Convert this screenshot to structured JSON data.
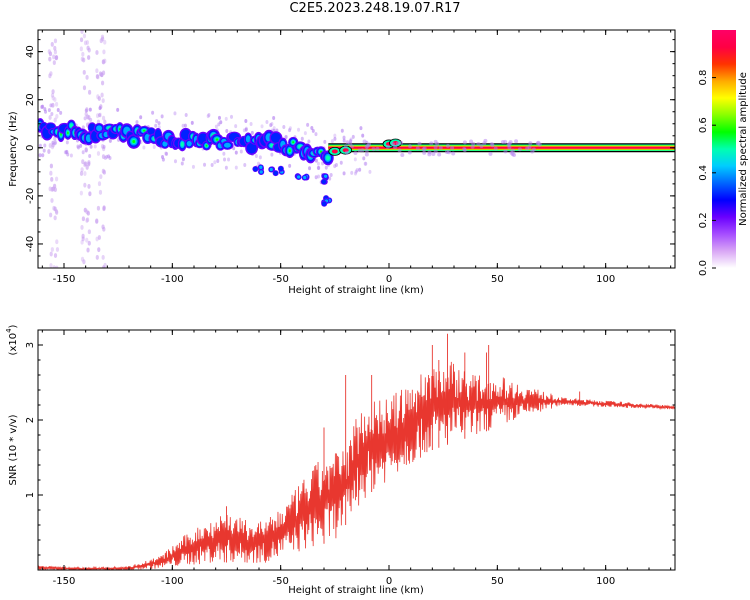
{
  "title": "C2E5.2023.248.19.07.R17",
  "chart_data": [
    {
      "type": "heatmap",
      "name": "spectrogram",
      "xlabel": "Height of straight line (km)",
      "ylabel": "Frequency (Hz)",
      "xlim": [
        -162,
        132
      ],
      "ylim": [
        -50,
        49
      ],
      "xticks": [
        -150,
        -100,
        -50,
        0,
        50,
        100
      ],
      "yticks": [
        -40,
        -20,
        0,
        20,
        40
      ],
      "colorbar": {
        "label": "Normalized spectral amplitude",
        "range": [
          0,
          1
        ],
        "ticks": [
          "0.0",
          "0.2",
          "0.4",
          "0.6",
          "0.8"
        ],
        "colors": [
          "#ffffff",
          "#d9a6f5",
          "#a64dff",
          "#6a00ff",
          "#0000ff",
          "#0066ff",
          "#00ccff",
          "#00ffb0",
          "#00ff00",
          "#88ff00",
          "#ffff00",
          "#ffaa00",
          "#ff3300",
          "#ff0044",
          "#ff0066"
        ]
      },
      "ridge": [
        {
          "x": -162,
          "y": 7
        },
        {
          "x": -150,
          "y": 7
        },
        {
          "x": -130,
          "y": 6
        },
        {
          "x": -110,
          "y": 4.5
        },
        {
          "x": -90,
          "y": 3
        },
        {
          "x": -70,
          "y": 2.5
        },
        {
          "x": -55,
          "y": 2
        },
        {
          "x": -45,
          "y": 1
        },
        {
          "x": -35,
          "y": -2
        },
        {
          "x": -28,
          "y": -6
        },
        {
          "x": -25,
          "y": 0
        },
        {
          "x": -20,
          "y": -1
        },
        {
          "x": -10,
          "y": 0
        },
        {
          "x": 0,
          "y": 1.5
        },
        {
          "x": 10,
          "y": 0.5
        },
        {
          "x": 20,
          "y": 0
        },
        {
          "x": 132,
          "y": 0
        }
      ],
      "clusters": [
        {
          "x": -60,
          "y": -9
        },
        {
          "x": -52,
          "y": -10
        },
        {
          "x": -40,
          "y": -12
        },
        {
          "x": -32,
          "y": -13
        },
        {
          "x": -30,
          "y": -22
        }
      ],
      "line_from_x": -28,
      "vertical_bands_x": [
        -155,
        -140,
        -133
      ]
    },
    {
      "type": "line",
      "name": "snr",
      "xlabel": "Height of straight line (km)",
      "ylabel": "SNR (10 * v/v)",
      "yscale_label": "(x10",
      "yscale_exp": "4",
      "yscale_close": ")",
      "xlim": [
        -162,
        132
      ],
      "ylim": [
        0,
        3.2
      ],
      "xticks": [
        -150,
        -100,
        -50,
        0,
        50,
        100
      ],
      "yticks": [
        1,
        2,
        3
      ],
      "color": "#e8372f",
      "envelope": [
        {
          "x": -162,
          "low": 0.0,
          "high": 0.06
        },
        {
          "x": -140,
          "low": 0.0,
          "high": 0.03
        },
        {
          "x": -120,
          "low": 0.0,
          "high": 0.05
        },
        {
          "x": -105,
          "low": 0.02,
          "high": 0.2
        },
        {
          "x": -95,
          "low": 0.05,
          "high": 0.45
        },
        {
          "x": -85,
          "low": 0.08,
          "high": 0.65
        },
        {
          "x": -75,
          "low": 0.1,
          "high": 0.8
        },
        {
          "x": -65,
          "low": 0.08,
          "high": 0.65
        },
        {
          "x": -55,
          "low": 0.1,
          "high": 0.7
        },
        {
          "x": -45,
          "low": 0.2,
          "high": 1.0
        },
        {
          "x": -35,
          "low": 0.3,
          "high": 1.4
        },
        {
          "x": -25,
          "low": 0.4,
          "high": 1.6
        },
        {
          "x": -20,
          "low": 0.6,
          "high": 1.6
        },
        {
          "x": -15,
          "low": 0.8,
          "high": 2.1
        },
        {
          "x": -10,
          "low": 1.0,
          "high": 2.3
        },
        {
          "x": 0,
          "low": 1.2,
          "high": 2.3
        },
        {
          "x": 10,
          "low": 1.4,
          "high": 2.5
        },
        {
          "x": 20,
          "low": 1.6,
          "high": 2.8
        },
        {
          "x": 30,
          "low": 1.7,
          "high": 2.8
        },
        {
          "x": 40,
          "low": 1.8,
          "high": 2.6
        },
        {
          "x": 50,
          "low": 1.9,
          "high": 2.6
        },
        {
          "x": 60,
          "low": 2.0,
          "high": 2.5
        },
        {
          "x": 70,
          "low": 2.1,
          "high": 2.4
        },
        {
          "x": 80,
          "low": 2.2,
          "high": 2.3
        },
        {
          "x": 100,
          "low": 2.17,
          "high": 2.26
        },
        {
          "x": 132,
          "low": 2.14,
          "high": 2.19
        }
      ],
      "spikes": [
        {
          "x": 27,
          "y": 3.15
        },
        {
          "x": 20,
          "y": 3.0
        },
        {
          "x": 46,
          "y": 3.0
        },
        {
          "x": 35,
          "y": 2.9
        },
        {
          "x": 45,
          "y": 2.9
        },
        {
          "x": 23,
          "y": 2.8
        },
        {
          "x": -8,
          "y": 2.6
        },
        {
          "x": -20,
          "y": 2.6
        },
        {
          "x": -30,
          "y": 1.9
        },
        {
          "x": -75,
          "y": 0.85
        },
        {
          "x": 88,
          "y": 2.38
        }
      ]
    }
  ]
}
